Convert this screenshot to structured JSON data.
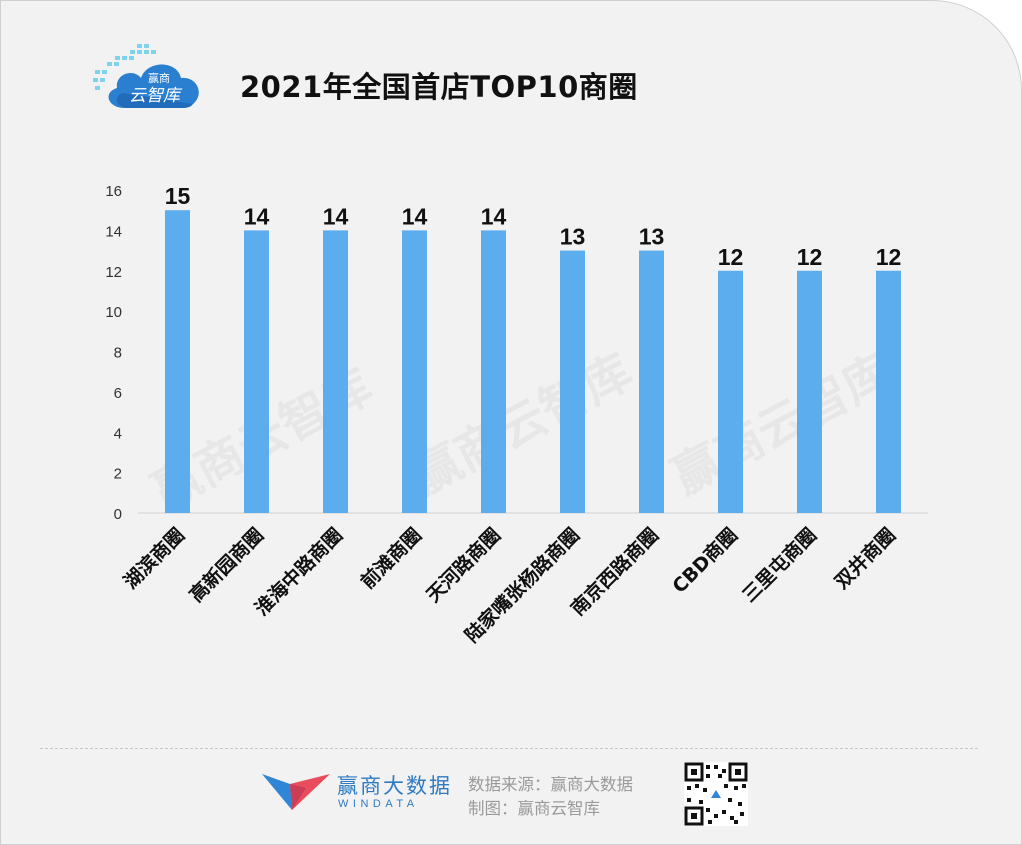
{
  "header": {
    "title": "2021年全国首店TOP10商圈",
    "logo_text_top": "赢商",
    "logo_text_bottom": "云智库"
  },
  "watermark": "赢商云智库",
  "chart_data": {
    "type": "bar",
    "title": "2021年全国首店TOP10商圈",
    "categories": [
      "湖滨商圈",
      "高新园商圈",
      "淮海中路商圈",
      "前滩商圈",
      "天河路商圈",
      "陆家嘴张杨路商圈",
      "南京西路商圈",
      "CBD商圈",
      "三里屯商圈",
      "双井商圈"
    ],
    "values": [
      15,
      14,
      14,
      14,
      14,
      13,
      13,
      12,
      12,
      12
    ],
    "ylim": [
      0,
      16
    ],
    "yticks": [
      0,
      2,
      4,
      6,
      8,
      10,
      12,
      14,
      16
    ],
    "grid": false,
    "bar_color": "#5badee",
    "data_labels": true
  },
  "footer": {
    "brand_name": "赢商大数据",
    "brand_sub": "WINDATA",
    "source": "数据来源：赢商大数据",
    "made_by": "制图：赢商云智库"
  },
  "colors": {
    "bar": "#5badee",
    "brand_blue": "#2e7bc4",
    "brand_red": "#e84c5d"
  }
}
